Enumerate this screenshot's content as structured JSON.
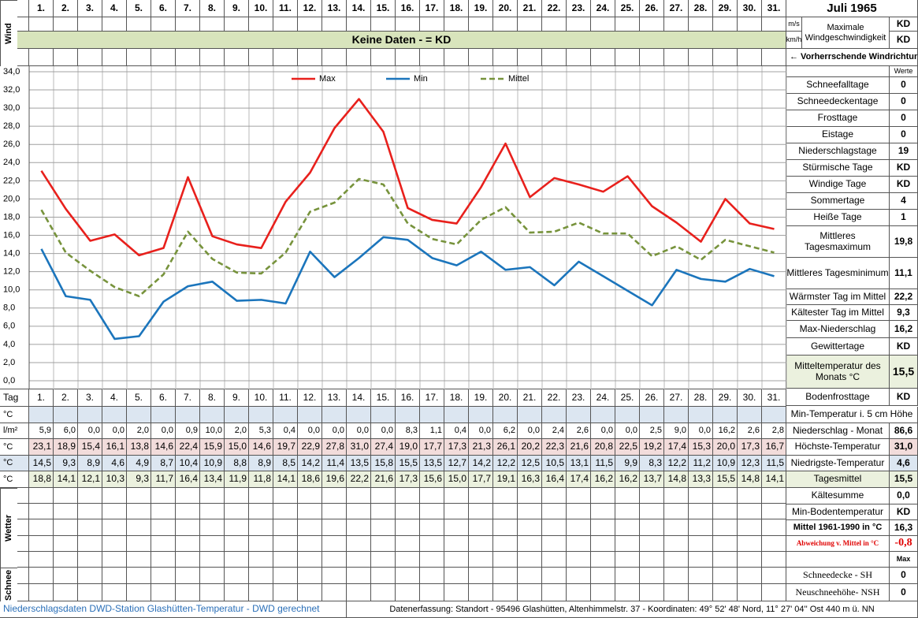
{
  "header": {
    "month": "Juli 1965",
    "wind_label": "Wind",
    "no_data": "Keine Daten -  = KD",
    "wind_units": [
      "m/s",
      "km/h"
    ],
    "wind_title": "Maximale Windgeschwindigkeit",
    "wind_values": [
      "KD",
      "KD"
    ],
    "wind_direction": "← Vorherrschende Windrichtung",
    "values_header": "Werte"
  },
  "chart_data": {
    "type": "line",
    "categories": [
      "1.",
      "2.",
      "3.",
      "4.",
      "5.",
      "6.",
      "7.",
      "8.",
      "9.",
      "10.",
      "11.",
      "12.",
      "13.",
      "14.",
      "15.",
      "16.",
      "17.",
      "18.",
      "19.",
      "20.",
      "21.",
      "22.",
      "23.",
      "24.",
      "25.",
      "26.",
      "27.",
      "28.",
      "29.",
      "30.",
      "31."
    ],
    "series": [
      {
        "name": "Max",
        "color": "#e8201c",
        "dash": false,
        "values": [
          23.1,
          18.9,
          15.4,
          16.1,
          13.8,
          14.6,
          22.4,
          15.9,
          15.0,
          14.6,
          19.7,
          22.9,
          27.8,
          31.0,
          27.4,
          19.0,
          17.7,
          17.3,
          21.3,
          26.1,
          20.2,
          22.3,
          21.6,
          20.8,
          22.5,
          19.2,
          17.4,
          15.3,
          20.0,
          17.3,
          16.7
        ],
        "value_labels": [
          "23,1",
          "18,9",
          "15,4",
          "16,1",
          "13,8",
          "14,6",
          "22,4",
          "15,9",
          "15,0",
          "14,6",
          "19,7",
          "22,9",
          "27,8",
          "31,0",
          "27,4",
          "19,0",
          "17,7",
          "17,3",
          "21,3",
          "26,1",
          "20,2",
          "22,3",
          "21,6",
          "20,8",
          "22,5",
          "19,2",
          "17,4",
          "15,3",
          "20,0",
          "17,3",
          "16,7"
        ]
      },
      {
        "name": "Min",
        "color": "#1b75bc",
        "dash": false,
        "values": [
          14.5,
          9.3,
          8.9,
          4.6,
          4.9,
          8.7,
          10.4,
          10.9,
          8.8,
          8.9,
          8.5,
          14.2,
          11.4,
          13.5,
          15.8,
          15.5,
          13.5,
          12.7,
          14.2,
          12.2,
          12.5,
          10.5,
          13.1,
          11.5,
          9.9,
          8.3,
          12.2,
          11.2,
          10.9,
          12.3,
          11.5
        ],
        "value_labels": [
          "14,5",
          "9,3",
          "8,9",
          "4,6",
          "4,9",
          "8,7",
          "10,4",
          "10,9",
          "8,8",
          "8,9",
          "8,5",
          "14,2",
          "11,4",
          "13,5",
          "15,8",
          "15,5",
          "13,5",
          "12,7",
          "14,2",
          "12,2",
          "12,5",
          "10,5",
          "13,1",
          "11,5",
          "9,9",
          "8,3",
          "12,2",
          "11,2",
          "10,9",
          "12,3",
          "11,5"
        ]
      },
      {
        "name": "Mittel",
        "color": "#77933c",
        "dash": true,
        "values": [
          18.8,
          14.1,
          12.1,
          10.3,
          9.3,
          11.7,
          16.4,
          13.4,
          11.9,
          11.8,
          14.1,
          18.6,
          19.6,
          22.2,
          21.6,
          17.3,
          15.6,
          15.0,
          17.7,
          19.1,
          16.3,
          16.4,
          17.4,
          16.2,
          16.2,
          13.7,
          14.8,
          13.3,
          15.5,
          14.8,
          14.1
        ],
        "value_labels": [
          "18,8",
          "14,1",
          "12,1",
          "10,3",
          "9,3",
          "11,7",
          "16,4",
          "13,4",
          "11,9",
          "11,8",
          "14,1",
          "18,6",
          "19,6",
          "22,2",
          "21,6",
          "17,3",
          "15,6",
          "15,0",
          "17,7",
          "19,1",
          "16,3",
          "16,4",
          "17,4",
          "16,2",
          "16,2",
          "13,7",
          "14,8",
          "13,3",
          "15,5",
          "14,8",
          "14,1"
        ]
      }
    ],
    "ylim": [
      0,
      34
    ],
    "yticks": [
      {
        "value": 0,
        "label": "0,0"
      },
      {
        "value": 2,
        "label": "2,0"
      },
      {
        "value": 4,
        "label": "4,0"
      },
      {
        "value": 6,
        "label": "6,0"
      },
      {
        "value": 8,
        "label": "8,0"
      },
      {
        "value": 10,
        "label": "10,0"
      },
      {
        "value": 12,
        "label": "12,0"
      },
      {
        "value": 14,
        "label": "14,0"
      },
      {
        "value": 16,
        "label": "16,0"
      },
      {
        "value": 18,
        "label": "18,0"
      },
      {
        "value": 20,
        "label": "20,0"
      },
      {
        "value": 22,
        "label": "22,0"
      },
      {
        "value": 24,
        "label": "24,0"
      },
      {
        "value": 26,
        "label": "26,0"
      },
      {
        "value": 28,
        "label": "28,0"
      },
      {
        "value": 30,
        "label": "30,0"
      },
      {
        "value": 32,
        "label": "32,0"
      },
      {
        "value": 34,
        "label": "34,0"
      }
    ],
    "grid": true
  },
  "table": {
    "day_label": "Tag",
    "rows": [
      {
        "unit": "°C"
      },
      {
        "unit": "l/m²",
        "values": [
          "5,9",
          "6,0",
          "0,0",
          "0,0",
          "2,0",
          "0,0",
          "0,9",
          "10,0",
          "2,0",
          "5,3",
          "0,4",
          "0,0",
          "0,0",
          "0,0",
          "0,0",
          "8,3",
          "1,1",
          "0,4",
          "0,0",
          "6,2",
          "0,0",
          "2,4",
          "2,6",
          "0,0",
          "0,0",
          "2,5",
          "9,0",
          "0,0",
          "16,2",
          "2,6",
          "2,8"
        ]
      },
      {
        "unit": "°C"
      },
      {
        "unit": "°C"
      },
      {
        "unit": "°C"
      }
    ]
  },
  "summary": [
    {
      "label": "Schneefalltage",
      "value": "0"
    },
    {
      "label": "Schneedeckentage",
      "value": "0"
    },
    {
      "label": "Frosttage",
      "value": "0"
    },
    {
      "label": "Eistage",
      "value": "0"
    },
    {
      "label": "Niederschlagstage",
      "value": "19"
    },
    {
      "label": "Stürmische Tage",
      "value": "KD"
    },
    {
      "label": "Windige Tage",
      "value": "KD"
    },
    {
      "label": "Sommertage",
      "value": "4"
    },
    {
      "label": "Heiße Tage",
      "value": "1"
    },
    {
      "label": "Mittleres Tagesmaximum",
      "value": "19,8"
    },
    {
      "label": "Mittleres Tagesminimum",
      "value": "11,1"
    },
    {
      "label": "Wärmster Tag im Mittel",
      "value": "22,2"
    },
    {
      "label": "Kältester Tag im Mittel",
      "value": "9,3"
    },
    {
      "label": "Max-Niederschlag",
      "value": "16,2"
    },
    {
      "label": "Gewittertage",
      "value": "KD"
    },
    {
      "label": "Mitteltemperatur des Monats °C",
      "value": "15,5"
    },
    {
      "label": "Bodenfrosttage",
      "value": "KD"
    }
  ],
  "soil_title": "Min-Temperatur i. 5 cm Höhe",
  "monthly": [
    {
      "label": "Niederschlag - Monat",
      "value": "86,6"
    },
    {
      "label": "Höchste-Temperatur",
      "value": "31,0"
    },
    {
      "label": "Niedrigste-Temperatur",
      "value": "4,6"
    },
    {
      "label": "Tagesmittel",
      "value": "15,5"
    },
    {
      "label": "Kältesumme",
      "value": "0,0"
    },
    {
      "label": "Min-Bodentemperatur",
      "value": "KD"
    },
    {
      "label": "Mittel 1961-1990 in °C",
      "value": "16,3"
    },
    {
      "label": "Abweichung v. Mittel in °C",
      "value": "-0,8"
    }
  ],
  "max_label": "Max",
  "snow": [
    {
      "label": "Schneedecke -  SH",
      "value": "0"
    },
    {
      "label": "Neuschneehöhe- NSH",
      "value": "0"
    }
  ],
  "side_labels": {
    "weather": "Wetter",
    "snow": "Schnee"
  },
  "footer": {
    "source": "Niederschlagsdaten DWD-Station Glashütten-Temperatur -  DWD gerechnet",
    "location": "Datenerfassung: Standort - 95496 Glashütten, Altenhimmelstr. 37 - Koordinaten: 49° 52' 48' Nord,  11° 27' 04'' Ost  440 m ü. NN"
  }
}
